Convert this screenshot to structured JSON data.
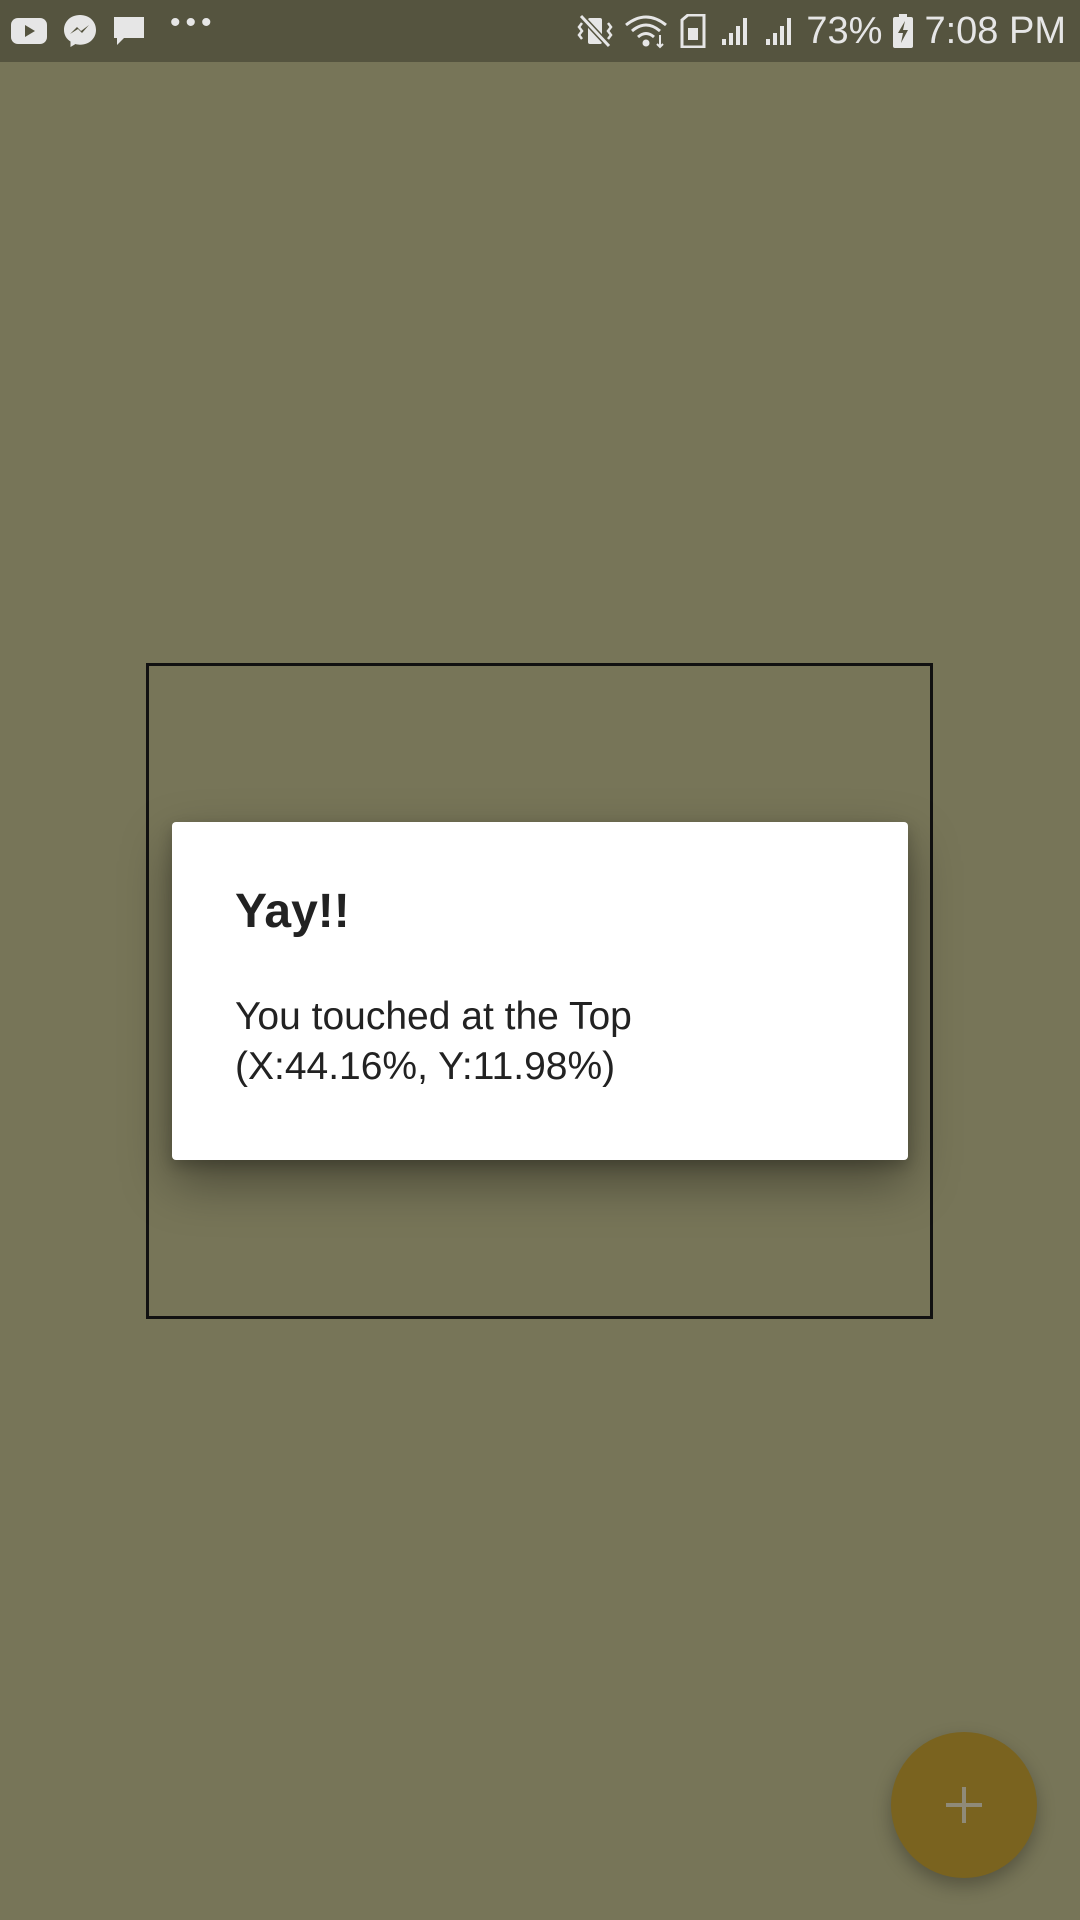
{
  "status_bar": {
    "battery_percent": "73%",
    "time": "7:08 PM",
    "notification_icons": [
      "youtube-icon",
      "messenger-icon",
      "message-icon",
      "more-dots-icon"
    ],
    "system_icons": [
      "vibrate-mute-icon",
      "wifi-icon",
      "sim-card-icon",
      "signal-icon",
      "signal-icon",
      "battery-charging-icon"
    ],
    "more_dots": "•••"
  },
  "dialog": {
    "title": "Yay!!",
    "message_line1": "You touched at the Top",
    "message_line2": "(X:44.16%, Y:11.98%)"
  },
  "fab": {
    "icon": "plus-icon",
    "color": "#7a631f"
  },
  "colors": {
    "background": "#777558",
    "status_bar": "#55543f",
    "dialog": "#ffffff"
  }
}
